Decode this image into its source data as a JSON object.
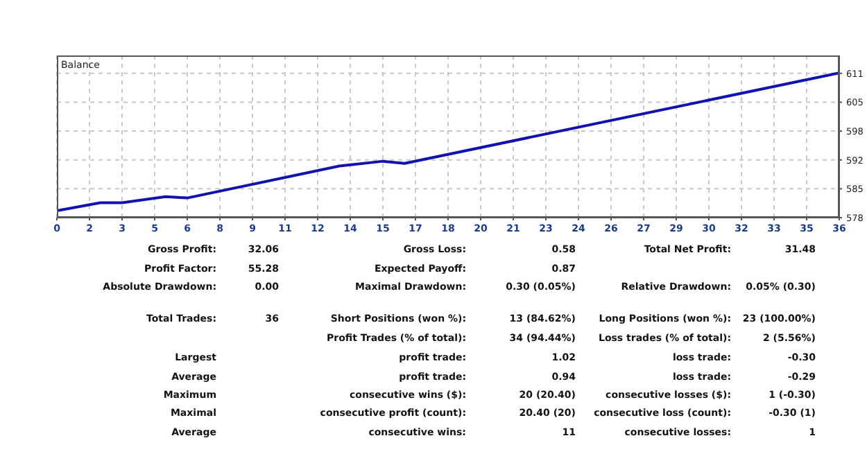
{
  "chart_data": {
    "type": "line",
    "title": "Balance",
    "x": [
      0,
      2,
      3,
      5,
      6,
      13,
      15,
      16,
      36
    ],
    "series": [
      {
        "color": "#1212b0",
        "values": [
          580.0,
          581.8,
          581.8,
          583.2,
          582.9,
          590.2,
          591.3,
          590.8,
          611.5
        ]
      }
    ],
    "xlim": [
      0,
      36
    ],
    "xticks": [
      0,
      {
        "value": 1.5,
        "label": "2"
      },
      3,
      {
        "value": 4.5,
        "label": "5"
      },
      6,
      {
        "value": 7.5,
        "label": "8"
      },
      9,
      {
        "value": 10.5,
        "label": "11"
      },
      12,
      {
        "value": 13.5,
        "label": "14"
      },
      15,
      {
        "value": 16.5,
        "label": "17"
      },
      18,
      {
        "value": 19.5,
        "label": "20"
      },
      21,
      {
        "value": 22.5,
        "label": "23"
      },
      24,
      {
        "value": 25.5,
        "label": "26"
      },
      27,
      {
        "value": 28.5,
        "label": "29"
      },
      30,
      {
        "value": 31.5,
        "label": "32"
      },
      33,
      {
        "value": 34.5,
        "label": "35"
      },
      36
    ],
    "ylim": [
      578.4,
      615.5
    ],
    "yticks": [
      {
        "value": 578.4,
        "label": "578"
      },
      {
        "value": 585.0,
        "label": "585"
      },
      {
        "value": 591.6,
        "label": "592"
      },
      {
        "value": 598.2,
        "label": "598"
      },
      {
        "value": 604.8,
        "label": "605"
      },
      {
        "value": 611.4,
        "label": "611"
      }
    ],
    "grid": true,
    "marker": "none",
    "line_style": "solid",
    "annotations": [
      "Gross Profit:",
      "32.06",
      "Gross Loss:",
      "0.58",
      "Total Net Profit:",
      "31.48",
      "Profit Factor:",
      "55.28",
      "Expected Payoff:",
      "0.87",
      "Absolute Drawdown:",
      "0.00",
      "Maximal Drawdown:",
      "0.30 (0.05%)",
      "Relative Drawdown:",
      "0.05% (0.30)",
      "Total Trades:",
      "36",
      "Short Positions (won %):",
      "13 (84.62%)",
      "Long Positions (won %):",
      "23 (100.00%)",
      "Profit Trades (% of total):",
      "34 (94.44%)",
      "Loss trades (% of total):",
      "2 (5.56%)",
      "Largest",
      "profit trade:",
      "1.02",
      "loss trade:",
      "-0.30",
      "Average",
      "profit trade:",
      "0.94",
      "loss trade:",
      "-0.29",
      "Maximum",
      "consecutive wins ($):",
      "20 (20.40)",
      "consecutive losses ($):",
      "1 (-0.30)",
      "Maximal",
      "consecutive profit (count):",
      "20.40 (20)",
      "consecutive loss (count):",
      "-0.30 (1)",
      "Average",
      "consecutive wins:",
      "11",
      "consecutive losses:",
      "1"
    ]
  }
}
